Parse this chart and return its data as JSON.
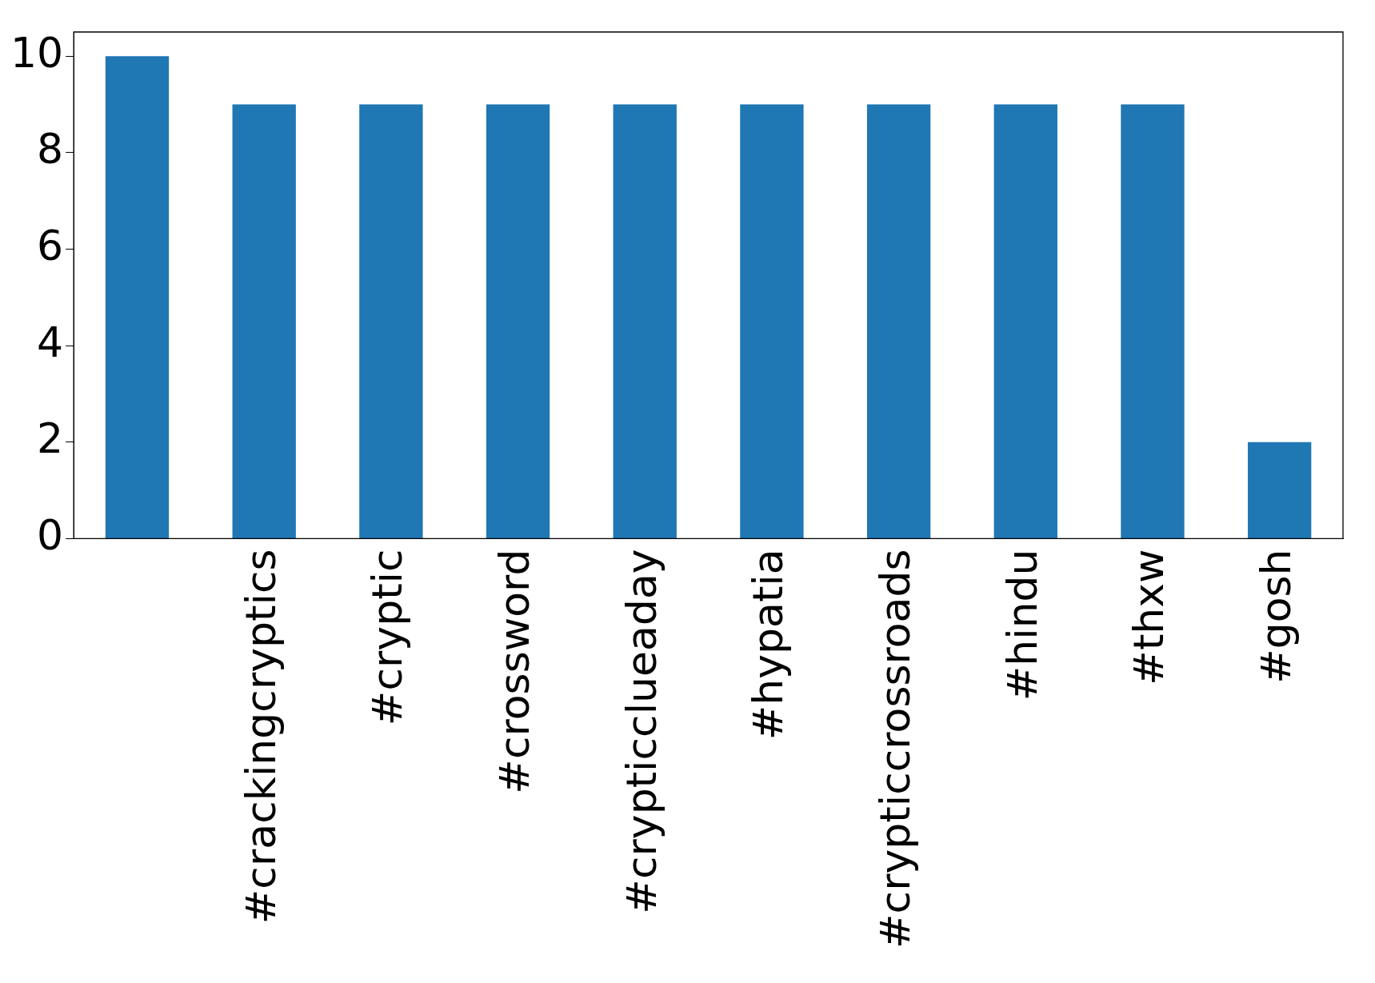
{
  "chart_data": {
    "type": "bar",
    "categories": [
      null,
      "#crackingcryptics",
      "#cryptic",
      "#crossword",
      "#crypticclueaday",
      "#hypatia",
      "#crypticcrossroads",
      "#hindu",
      "#thxw",
      "#gosh"
    ],
    "values": [
      10,
      9,
      9,
      9,
      9,
      9,
      9,
      9,
      9,
      2
    ],
    "color": "#1f77b4",
    "ylim": [
      0,
      10.5
    ],
    "yticks": [
      0,
      2,
      4,
      6,
      8,
      10
    ],
    "grid": false,
    "legend": false
  }
}
